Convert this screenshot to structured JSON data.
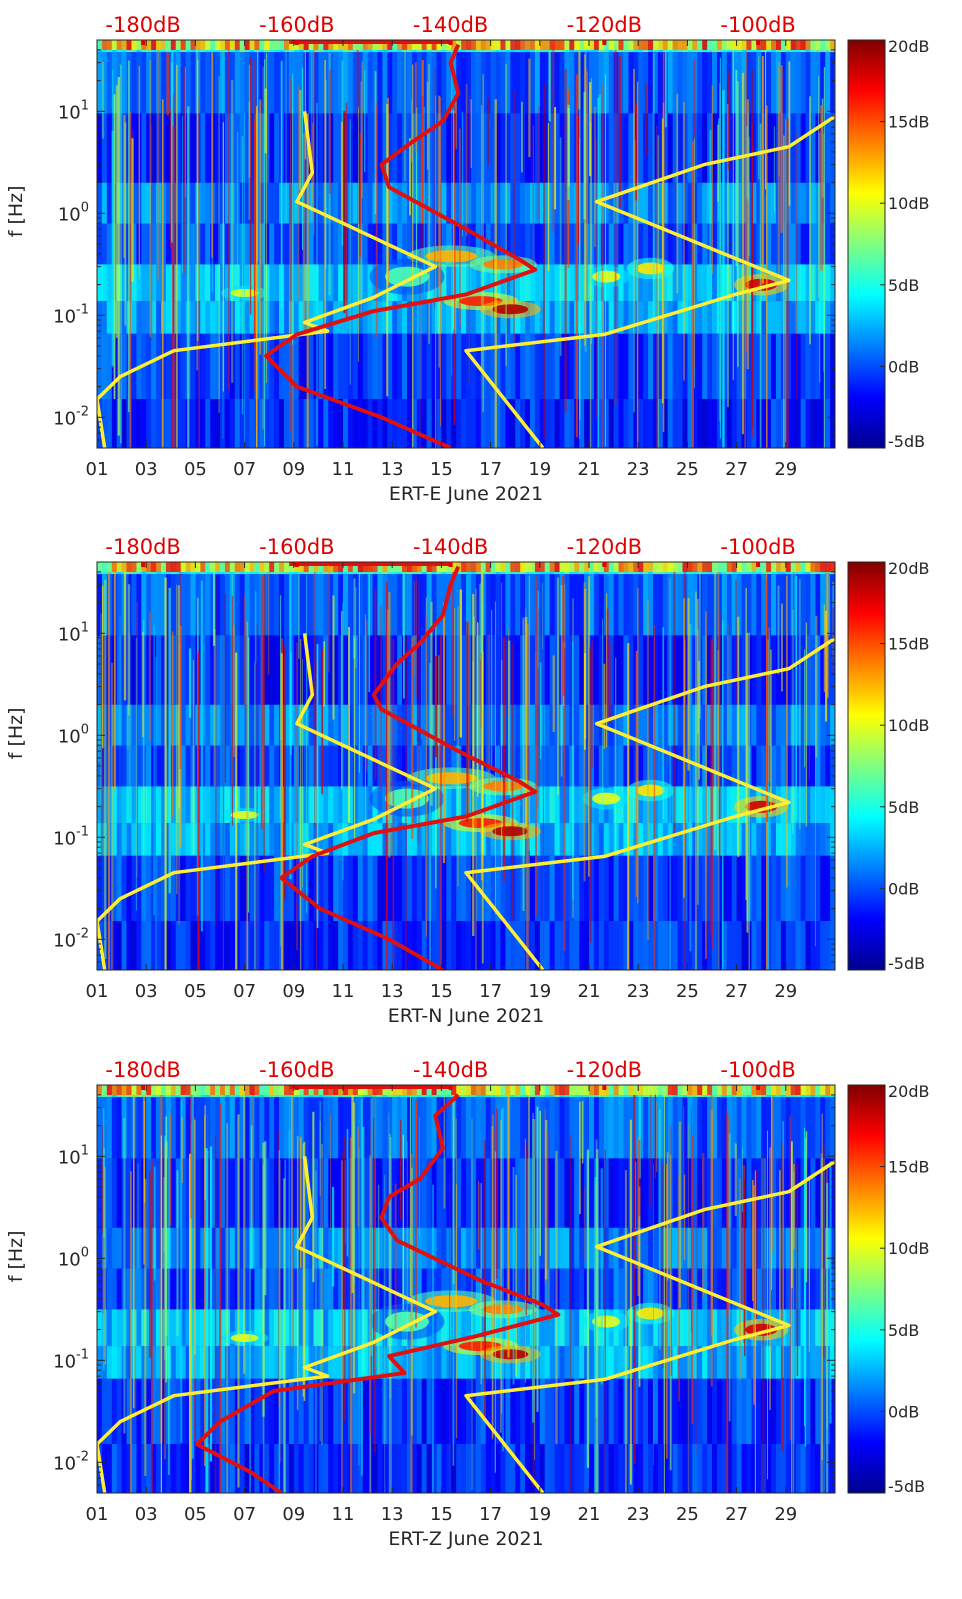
{
  "colors": {
    "noise_model_curve": "#ffee33",
    "measured_curve": "#e01010",
    "db_labels": "#e00000"
  },
  "colorbar": {
    "min_db": -5,
    "max_db": 20,
    "tick_labels": [
      "20dB",
      "15dB",
      "10dB",
      "5dB",
      "0dB",
      "-5dB"
    ],
    "tick_values": [
      20,
      15,
      10,
      5,
      0,
      -5
    ],
    "colormap": "jet"
  },
  "chart_data": [
    {
      "type": "heatmap",
      "title": "",
      "xlabel": "ERT-E June 2021",
      "ylabel": "f [Hz]",
      "x_tick_labels": [
        "01",
        "03",
        "05",
        "07",
        "09",
        "11",
        "13",
        "15",
        "17",
        "19",
        "21",
        "23",
        "25",
        "27",
        "29"
      ],
      "x_range_days": [
        1,
        31
      ],
      "y_scale": "log",
      "ylim_hz": [
        0.005,
        50
      ],
      "y_tick_labels": [
        "10^1",
        "10^0",
        "10^-1",
        "10^-2"
      ],
      "top_axis_labels": [
        "-180dB",
        "-160dB",
        "-140dB",
        "-120dB",
        "-100dB"
      ],
      "top_axis_range_db": [
        -186,
        -90
      ],
      "series": [
        {
          "name": "noise model (yellow)",
          "color": "#ffee33",
          "points_db_hz": [
            [
              -159,
              10
            ],
            [
              -158,
              2.5
            ],
            [
              -160,
              1.3
            ],
            [
              -142,
              0.3
            ],
            [
              -150,
              0.15
            ],
            [
              -159,
              0.085
            ],
            [
              -156,
              0.07
            ],
            [
              -176,
              0.045
            ],
            [
              -183,
              0.025
            ],
            [
              -186,
              0.015
            ],
            [
              -185,
              0.005
            ]
          ]
        },
        {
          "name": "noise model upper (yellow)",
          "color": "#ffee33",
          "points_db_hz": [
            [
              -89,
              10
            ],
            [
              -96,
              4.5
            ],
            [
              -107,
              3.0
            ],
            [
              -121,
              1.3
            ],
            [
              -96,
              0.22
            ],
            [
              -103,
              0.16
            ],
            [
              -120,
              0.065
            ],
            [
              -138,
              0.045
            ],
            [
              -128,
              0.005
            ]
          ]
        },
        {
          "name": "measured (red)",
          "color": "#e01010",
          "points_db_hz": [
            [
              -139,
              45
            ],
            [
              -140,
              30
            ],
            [
              -139,
              15
            ],
            [
              -141,
              8
            ],
            [
              -145,
              5
            ],
            [
              -149,
              3
            ],
            [
              -148,
              1.8
            ],
            [
              -138,
              0.7
            ],
            [
              -131,
              0.35
            ],
            [
              -129,
              0.28
            ],
            [
              -138,
              0.16
            ],
            [
              -150,
              0.11
            ],
            [
              -160,
              0.065
            ],
            [
              -164,
              0.04
            ],
            [
              -160,
              0.02
            ],
            [
              -149,
              0.01
            ],
            [
              -140,
              0.005
            ]
          ]
        }
      ]
    },
    {
      "type": "heatmap",
      "title": "",
      "xlabel": "ERT-N June 2021",
      "ylabel": "f [Hz]",
      "x_tick_labels": [
        "01",
        "03",
        "05",
        "07",
        "09",
        "11",
        "13",
        "15",
        "17",
        "19",
        "21",
        "23",
        "25",
        "27",
        "29"
      ],
      "x_range_days": [
        1,
        31
      ],
      "y_scale": "log",
      "ylim_hz": [
        0.005,
        50
      ],
      "y_tick_labels": [
        "10^1",
        "10^0",
        "10^-1",
        "10^-2"
      ],
      "top_axis_labels": [
        "-180dB",
        "-160dB",
        "-140dB",
        "-120dB",
        "-100dB"
      ],
      "top_axis_range_db": [
        -186,
        -90
      ],
      "series": [
        {
          "name": "noise model (yellow)",
          "color": "#ffee33",
          "points_db_hz": [
            [
              -159,
              10
            ],
            [
              -158,
              2.5
            ],
            [
              -160,
              1.3
            ],
            [
              -142,
              0.3
            ],
            [
              -150,
              0.15
            ],
            [
              -159,
              0.085
            ],
            [
              -156,
              0.07
            ],
            [
              -176,
              0.045
            ],
            [
              -183,
              0.025
            ],
            [
              -186,
              0.015
            ],
            [
              -185,
              0.005
            ]
          ]
        },
        {
          "name": "noise model upper (yellow)",
          "color": "#ffee33",
          "points_db_hz": [
            [
              -89,
              10
            ],
            [
              -96,
              4.5
            ],
            [
              -107,
              3.0
            ],
            [
              -121,
              1.3
            ],
            [
              -96,
              0.22
            ],
            [
              -103,
              0.16
            ],
            [
              -120,
              0.065
            ],
            [
              -138,
              0.045
            ],
            [
              -128,
              0.005
            ]
          ]
        },
        {
          "name": "measured (red)",
          "color": "#e01010",
          "points_db_hz": [
            [
              -139,
              45
            ],
            [
              -140,
              30
            ],
            [
              -141,
              15
            ],
            [
              -144,
              8
            ],
            [
              -147,
              5
            ],
            [
              -150,
              2.5
            ],
            [
              -149,
              1.8
            ],
            [
              -139,
              0.7
            ],
            [
              -131,
              0.35
            ],
            [
              -129,
              0.28
            ],
            [
              -138,
              0.16
            ],
            [
              -150,
              0.11
            ],
            [
              -158,
              0.065
            ],
            [
              -162,
              0.04
            ],
            [
              -157,
              0.02
            ],
            [
              -148,
              0.01
            ],
            [
              -141,
              0.005
            ]
          ]
        }
      ]
    },
    {
      "type": "heatmap",
      "title": "",
      "xlabel": "ERT-Z June 2021",
      "ylabel": "f [Hz]",
      "x_tick_labels": [
        "01",
        "03",
        "05",
        "07",
        "09",
        "11",
        "13",
        "15",
        "17",
        "19",
        "21",
        "23",
        "25",
        "27",
        "29"
      ],
      "x_range_days": [
        1,
        31
      ],
      "y_scale": "log",
      "ylim_hz": [
        0.005,
        50
      ],
      "y_tick_labels": [
        "10^1",
        "10^0",
        "10^-1",
        "10^-2"
      ],
      "top_axis_labels": [
        "-180dB",
        "-160dB",
        "-140dB",
        "-120dB",
        "-100dB"
      ],
      "top_axis_range_db": [
        -186,
        -90
      ],
      "series": [
        {
          "name": "noise model (yellow)",
          "color": "#ffee33",
          "points_db_hz": [
            [
              -159,
              10
            ],
            [
              -158,
              2.5
            ],
            [
              -160,
              1.3
            ],
            [
              -142,
              0.3
            ],
            [
              -150,
              0.15
            ],
            [
              -159,
              0.085
            ],
            [
              -156,
              0.07
            ],
            [
              -176,
              0.045
            ],
            [
              -183,
              0.025
            ],
            [
              -186,
              0.015
            ],
            [
              -185,
              0.005
            ]
          ]
        },
        {
          "name": "noise model upper (yellow)",
          "color": "#ffee33",
          "points_db_hz": [
            [
              -89,
              10
            ],
            [
              -96,
              4.5
            ],
            [
              -107,
              3.0
            ],
            [
              -121,
              1.3
            ],
            [
              -96,
              0.22
            ],
            [
              -103,
              0.16
            ],
            [
              -120,
              0.065
            ],
            [
              -138,
              0.045
            ],
            [
              -128,
              0.005
            ]
          ]
        },
        {
          "name": "measured (red)",
          "color": "#e01010",
          "points_db_hz": [
            [
              -139,
              40
            ],
            [
              -142,
              25
            ],
            [
              -141,
              12
            ],
            [
              -144,
              6
            ],
            [
              -148,
              4
            ],
            [
              -149,
              2.5
            ],
            [
              -147,
              1.5
            ],
            [
              -136,
              0.6
            ],
            [
              -128,
              0.35
            ],
            [
              -126,
              0.28
            ],
            [
              -137,
              0.17
            ],
            [
              -148,
              0.11
            ],
            [
              -146,
              0.075
            ],
            [
              -163,
              0.05
            ],
            [
              -170,
              0.025
            ],
            [
              -173,
              0.015
            ],
            [
              -166,
              0.008
            ],
            [
              -162,
              0.005
            ]
          ]
        }
      ]
    }
  ]
}
